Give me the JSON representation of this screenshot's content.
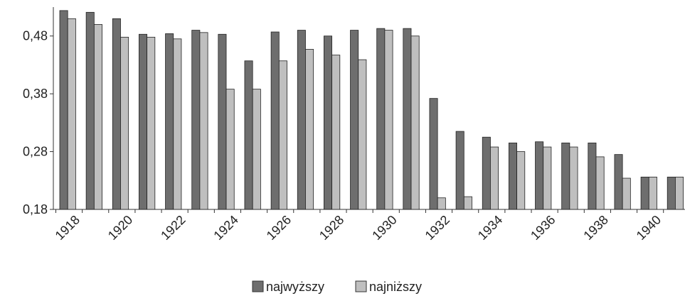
{
  "chart_data": {
    "type": "bar",
    "title": "",
    "xlabel": "",
    "ylabel": "",
    "ylim": [
      0.18,
      0.53
    ],
    "yticks": [
      "0,18",
      "0,28",
      "0,38",
      "0,48"
    ],
    "ytick_values": [
      0.18,
      0.28,
      0.38,
      0.48
    ],
    "categories": [
      "1918",
      "1919",
      "1920",
      "1921",
      "1922",
      "1923",
      "1924",
      "1925",
      "1926",
      "1927",
      "1928",
      "1929",
      "1930",
      "1931",
      "1932",
      "1933",
      "1934",
      "1935",
      "1936",
      "1937",
      "1938",
      "1939",
      "1940",
      "1941"
    ],
    "xtick_labels": [
      "1918",
      "1920",
      "1922",
      "1924",
      "1926",
      "1928",
      "1930",
      "1932",
      "1934",
      "1936",
      "1938",
      "1940"
    ],
    "series": [
      {
        "name": "najwyższy",
        "color": "#6e6e6e",
        "values": [
          0.524,
          0.521,
          0.51,
          0.483,
          0.484,
          0.49,
          0.483,
          0.437,
          0.487,
          0.49,
          0.48,
          0.49,
          0.493,
          0.493,
          0.372,
          0.315,
          0.305,
          0.295,
          0.297,
          0.295,
          0.295,
          0.275,
          0.236,
          0.236
        ]
      },
      {
        "name": "najniższy",
        "color": "#bfbfbf",
        "values": [
          0.51,
          0.5,
          0.478,
          0.478,
          0.475,
          0.486,
          0.388,
          0.388,
          0.437,
          0.457,
          0.447,
          0.439,
          0.49,
          0.48,
          0.2,
          0.202,
          0.288,
          0.28,
          0.288,
          0.288,
          0.271,
          0.234,
          0.236,
          0.236
        ]
      }
    ],
    "legend_position": "bottom",
    "grid": false
  }
}
